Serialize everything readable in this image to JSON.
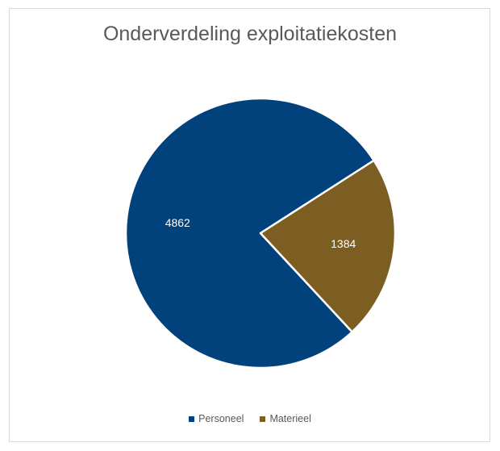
{
  "chart_data": {
    "type": "pie",
    "title": "Onderverdeling exploitatiekosten",
    "categories": [
      "Personeel",
      "Materieel"
    ],
    "values": [
      4862,
      1384
    ],
    "data_labels": [
      "4862",
      "1384"
    ],
    "colors": [
      "#02427C",
      "#7C5E22"
    ],
    "legend_position": "bottom"
  }
}
